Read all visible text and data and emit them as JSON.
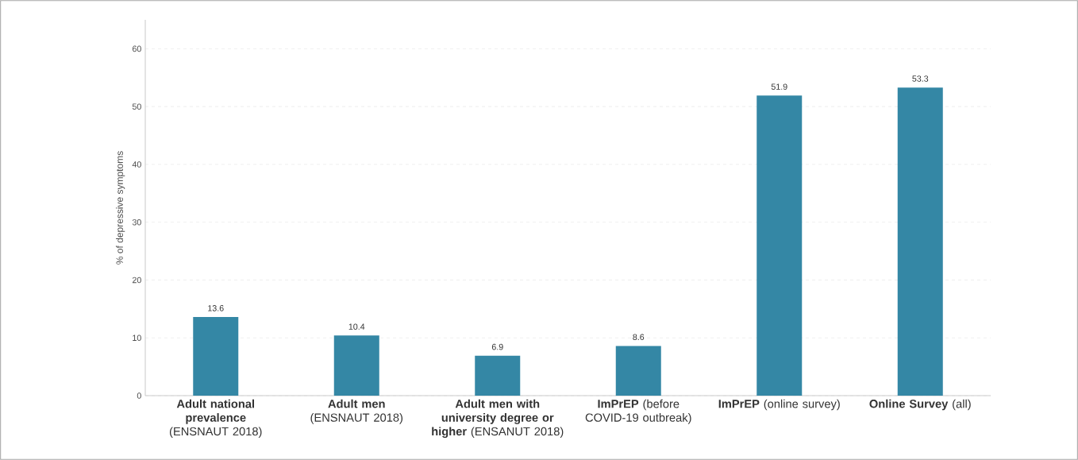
{
  "chart_data": {
    "type": "bar",
    "ylabel": "% of depressive symptoms",
    "categories": [
      "**Adult national prevalence** (ENSNAUT 2018)",
      "**Adult men** (ENSNAUT 2018)",
      "**Adult men with university degree or higher** (ENSANUT 2018)",
      "**ImPrEP** (before COVID-19 outbreak)",
      "**ImPrEP** (online survey)",
      "**Online Survey** (all)"
    ],
    "values": [
      13.6,
      10.4,
      6.9,
      8.6,
      51.9,
      53.3
    ],
    "color": "#3487a5",
    "ylim": [
      0,
      65
    ],
    "yticks": [
      0,
      10,
      20,
      30,
      40,
      50,
      60
    ],
    "grid": "y",
    "data_labels": true
  }
}
